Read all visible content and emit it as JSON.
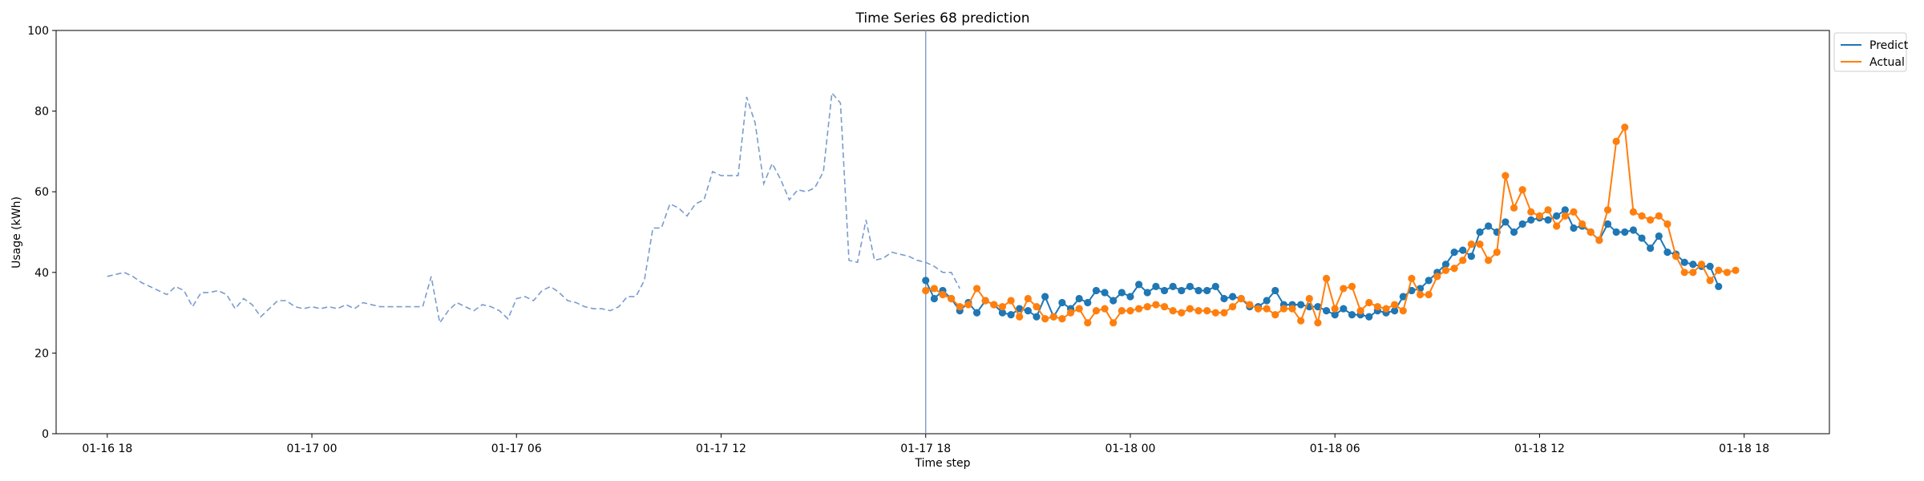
{
  "chart_data": {
    "type": "line",
    "title": "Time Series 68 prediction",
    "xlabel": "Time step",
    "ylabel": "Usage (kWh)",
    "ylim": [
      0,
      100
    ],
    "yticks": [
      0,
      20,
      40,
      60,
      80,
      100
    ],
    "xlim": [
      "2024-01-16 16:30",
      "2024-01-18 20:30"
    ],
    "xticks": [
      {
        "t": "2024-01-16 18:00",
        "label": "01-16 18"
      },
      {
        "t": "2024-01-17 00:00",
        "label": "01-17 00"
      },
      {
        "t": "2024-01-17 06:00",
        "label": "01-17 06"
      },
      {
        "t": "2024-01-17 12:00",
        "label": "01-17 12"
      },
      {
        "t": "2024-01-17 18:00",
        "label": "01-17 18"
      },
      {
        "t": "2024-01-18 00:00",
        "label": "01-18 00"
      },
      {
        "t": "2024-01-18 06:00",
        "label": "01-18 06"
      },
      {
        "t": "2024-01-18 12:00",
        "label": "01-18 12"
      },
      {
        "t": "2024-01-18 18:00",
        "label": "01-18 18"
      }
    ],
    "split_time": "2024-01-17 18:00",
    "legend_position": "upper-right-outside",
    "grid": false,
    "history": {
      "start": "2024-01-16 18:00",
      "step_minutes": 15,
      "style": "dashed",
      "color": "#7a9ccc",
      "values": [
        39,
        39.5,
        40,
        39,
        37.5,
        36.5,
        35.5,
        34.5,
        36.5,
        35.5,
        31.5,
        35,
        35,
        35.5,
        34.5,
        31,
        33.5,
        32,
        29,
        31,
        33,
        33,
        31.5,
        31,
        31.5,
        31,
        31.5,
        31,
        32,
        31,
        32.5,
        32,
        31.5,
        31.5,
        31.5,
        31.5,
        31.5,
        31.5,
        39,
        27.5,
        30.5,
        32.5,
        31.5,
        30.5,
        32,
        31.5,
        30.5,
        28.5,
        33.5,
        34,
        33,
        35.5,
        36.5,
        35,
        33,
        32.5,
        31.5,
        31,
        31,
        30.5,
        31.5,
        34,
        34,
        38,
        51,
        51,
        57,
        56,
        54,
        57,
        58,
        65,
        64,
        64,
        64,
        83.5,
        77,
        62,
        67,
        63,
        58,
        60.5,
        60,
        61,
        65,
        84.5,
        82,
        43,
        42.5,
        53,
        43,
        43.5,
        45,
        44.5,
        44,
        43,
        42.5,
        41.5,
        40,
        40,
        36
      ]
    },
    "series": [
      {
        "name": "Predict",
        "color": "#1f77b4",
        "start": "2024-01-17 18:00",
        "step_minutes": 15,
        "values": [
          38,
          33.5,
          35.5,
          33.5,
          30.5,
          32.5,
          30,
          33,
          32,
          30,
          29.5,
          31,
          30.5,
          29,
          34,
          29,
          32.5,
          31,
          33.5,
          32.5,
          35.5,
          35,
          33,
          35,
          34,
          37,
          35,
          36.5,
          35.5,
          36.5,
          35.5,
          36.5,
          35.5,
          35.5,
          36.5,
          33.5,
          34,
          33.5,
          31.5,
          31.5,
          33,
          35.5,
          32,
          32,
          32,
          31.5,
          31.5,
          30.5,
          29.5,
          31,
          29.5,
          29.5,
          29,
          30.5,
          30,
          30.5,
          34,
          35.5,
          36,
          38,
          40,
          42,
          45,
          45.5,
          44,
          50,
          51.5,
          50,
          52.5,
          50,
          52,
          53,
          53.5,
          53,
          54,
          55.5,
          51,
          51.5,
          50,
          48,
          52,
          50,
          50,
          50.5,
          48.5,
          46,
          49,
          45,
          44.5,
          42.5,
          42,
          41.5,
          41.5,
          36.5
        ]
      },
      {
        "name": "Actual",
        "color": "#ff7f0e",
        "start": "2024-01-17 18:00",
        "step_minutes": 15,
        "values": [
          35.5,
          36,
          34.5,
          33.5,
          31.5,
          32,
          36,
          33,
          32,
          31.5,
          33,
          29,
          33.5,
          31.5,
          28.5,
          29,
          28.5,
          30,
          31,
          27.5,
          30.5,
          31,
          27.5,
          30.5,
          30.5,
          31,
          31.5,
          32,
          31.5,
          30.5,
          30,
          31,
          30.5,
          30.5,
          30,
          30,
          31.5,
          33.5,
          32,
          31,
          31,
          29.5,
          31,
          31,
          28,
          33.5,
          27.5,
          38.5,
          31,
          36,
          36.5,
          30.5,
          32.5,
          31.5,
          31,
          32,
          30.5,
          38.5,
          34.5,
          34.5,
          39,
          40.5,
          41,
          43,
          47,
          47,
          43,
          45,
          64,
          56,
          60.5,
          55,
          54,
          55.5,
          51.5,
          54,
          55,
          52,
          50,
          48,
          55.5,
          72.5,
          76,
          55,
          54,
          53,
          54,
          52,
          44,
          40,
          40,
          42,
          38,
          40.5,
          40,
          40.5
        ]
      }
    ]
  }
}
